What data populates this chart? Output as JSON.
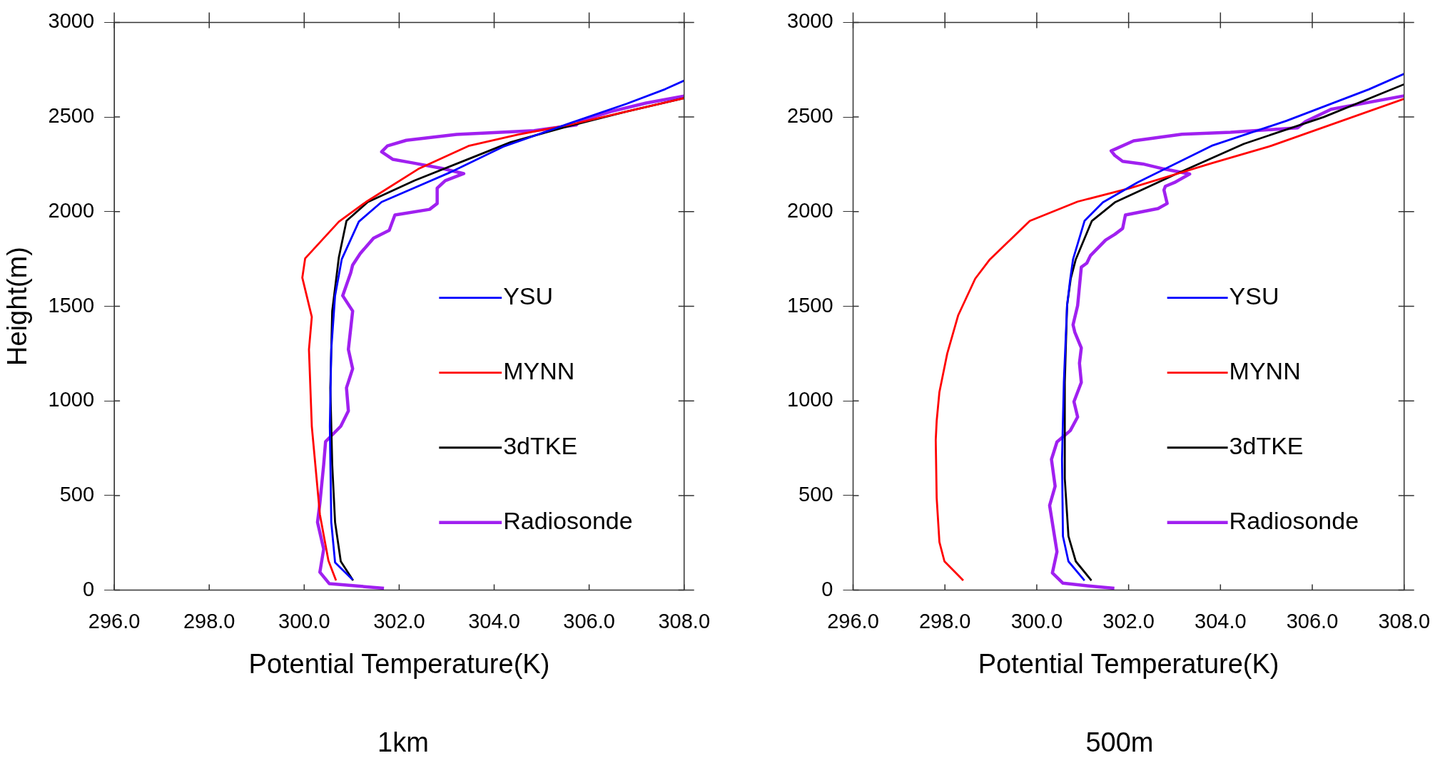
{
  "chart_data": [
    {
      "type": "line",
      "xlabel": "Potential Temperature(K)",
      "ylabel": "Height(m)",
      "annotations": [
        "1km"
      ],
      "legend": "right",
      "xlim": [
        296,
        308
      ],
      "xticks": [
        {
          "value": 296,
          "label": "296.0"
        },
        {
          "value": 298,
          "label": "298.0"
        },
        {
          "value": 300,
          "label": "300.0"
        },
        {
          "value": 302,
          "label": "302.0"
        },
        {
          "value": 304,
          "label": "304.0"
        },
        {
          "value": 306,
          "label": "306.0"
        },
        {
          "value": 308,
          "label": "308.0"
        }
      ],
      "ylim": [
        0,
        3000
      ],
      "yticks": [
        0,
        500,
        1000,
        1500,
        2000,
        2500,
        3000
      ],
      "series": [
        {
          "name": "YSU",
          "color": "#0000ff",
          "x": [
            301.02,
            300.65,
            300.57,
            300.54,
            300.57,
            300.65,
            300.79,
            301.15,
            301.63,
            303.05,
            304.19,
            305.57,
            306.79,
            307.6,
            308.0
          ],
          "values": [
            55,
            146,
            359,
            866,
            1272,
            1556,
            1748,
            1947,
            2051,
            2205,
            2343,
            2465,
            2570,
            2647,
            2692
          ]
        },
        {
          "name": "MYNN",
          "color": "#ff0000",
          "x": [
            300.67,
            300.51,
            300.33,
            300.16,
            300.1,
            300.16,
            299.96,
            300.02,
            300.73,
            301.3,
            302.4,
            303.46,
            304.51,
            305.57,
            306.79,
            308.0
          ],
          "values": [
            51,
            156,
            400,
            866,
            1272,
            1444,
            1651,
            1753,
            1947,
            2051,
            2225,
            2347,
            2408,
            2458,
            2529,
            2600
          ]
        },
        {
          "name": "3dTKE",
          "color": "#000000",
          "x": [
            301.03,
            300.77,
            300.65,
            300.59,
            300.55,
            300.59,
            300.73,
            300.89,
            301.34,
            302.32,
            303.54,
            304.35,
            305.57,
            306.79,
            308.0
          ],
          "values": [
            51,
            152,
            359,
            663,
            1069,
            1475,
            1759,
            1951,
            2051,
            2164,
            2286,
            2367,
            2452,
            2529,
            2600
          ]
        },
        {
          "name": "Radiosonde",
          "color": "#a020f0",
          "x": [
            301.68,
            300.53,
            300.33,
            300.41,
            300.28,
            300.33,
            300.41,
            300.45,
            300.77,
            300.93,
            300.89,
            301.02,
            300.93,
            301.02,
            300.81,
            300.98,
            301.02,
            301.18,
            301.46,
            301.79,
            301.91,
            302.64,
            302.8,
            302.8,
            302.97,
            303.36,
            302.89,
            302.32,
            301.87,
            301.63,
            301.75,
            302.15,
            303.21,
            304.84,
            305.73,
            305.81,
            306.46,
            307.2,
            308.0
          ],
          "values": [
            10,
            34,
            95,
            217,
            359,
            460,
            663,
            785,
            866,
            947,
            1069,
            1170,
            1272,
            1475,
            1556,
            1677,
            1718,
            1779,
            1860,
            1901,
            1982,
            2012,
            2043,
            2124,
            2164,
            2201,
            2229,
            2256,
            2276,
            2316,
            2347,
            2377,
            2408,
            2428,
            2458,
            2479,
            2529,
            2574,
            2611
          ]
        }
      ]
    },
    {
      "type": "line",
      "xlabel": "Potential Temperature(K)",
      "annotations": [
        "500m"
      ],
      "legend": "right",
      "xlim": [
        296,
        308
      ],
      "xticks": [
        {
          "value": 296,
          "label": "296.0"
        },
        {
          "value": 298,
          "label": "298.0"
        },
        {
          "value": 300,
          "label": "300.0"
        },
        {
          "value": 302,
          "label": "302.0"
        },
        {
          "value": 304,
          "label": "304.0"
        },
        {
          "value": 306,
          "label": "306.0"
        },
        {
          "value": 308,
          "label": "308.0"
        }
      ],
      "ylim": [
        0,
        3000
      ],
      "yticks": [
        0,
        500,
        1000,
        1500,
        2000,
        2500,
        3000
      ],
      "series": [
        {
          "name": "YSU",
          "color": "#0000ff",
          "x": [
            301.04,
            300.69,
            300.57,
            300.55,
            300.59,
            300.66,
            300.73,
            300.79,
            301.04,
            301.44,
            302.19,
            303.81,
            305.44,
            307.23,
            308.0
          ],
          "values": [
            51,
            152,
            285,
            691,
            1098,
            1504,
            1646,
            1748,
            1951,
            2049,
            2154,
            2348,
            2480,
            2646,
            2728
          ]
        },
        {
          "name": "MYNN",
          "color": "#ff0000",
          "x": [
            298.4,
            297.99,
            297.88,
            297.82,
            297.8,
            297.82,
            297.88,
            298.05,
            298.29,
            298.66,
            298.98,
            299.85,
            300.89,
            302.03,
            303.81,
            305.11,
            308.0
          ],
          "values": [
            51,
            152,
            254,
            488,
            793,
            894,
            1047,
            1250,
            1453,
            1646,
            1748,
            1951,
            2053,
            2124,
            2256,
            2348,
            2596
          ]
        },
        {
          "name": "3dTKE",
          "color": "#000000",
          "x": [
            301.19,
            300.85,
            300.69,
            300.61,
            300.61,
            300.66,
            300.74,
            300.85,
            301.2,
            301.7,
            303.0,
            304.51,
            306.25,
            308.0
          ],
          "values": [
            51,
            152,
            285,
            590,
            1098,
            1504,
            1646,
            1748,
            1951,
            2049,
            2195,
            2358,
            2500,
            2673
          ]
        },
        {
          "name": "Radiosonde",
          "color": "#a020f0",
          "x": [
            301.69,
            301.22,
            300.57,
            300.34,
            300.44,
            300.36,
            300.28,
            300.4,
            300.32,
            300.44,
            300.73,
            300.89,
            300.81,
            300.97,
            300.93,
            300.97,
            300.83,
            300.79,
            300.89,
            300.93,
            300.97,
            301.09,
            301.17,
            301.5,
            301.7,
            301.87,
            301.93,
            302.64,
            302.84,
            302.77,
            302.8,
            303.0,
            303.33,
            302.76,
            302.31,
            301.87,
            301.7,
            301.62,
            302.11,
            303.16,
            304.22,
            305.68,
            305.85,
            306.41,
            308.0
          ],
          "values": [
            10,
            20,
            37,
            91,
            203,
            325,
            447,
            549,
            691,
            783,
            843,
            915,
            996,
            1098,
            1199,
            1280,
            1362,
            1402,
            1504,
            1606,
            1707,
            1728,
            1768,
            1850,
            1880,
            1911,
            1982,
            2016,
            2043,
            2114,
            2134,
            2154,
            2199,
            2226,
            2252,
            2266,
            2297,
            2321,
            2374,
            2409,
            2419,
            2443,
            2476,
            2541,
            2612
          ]
        }
      ]
    }
  ]
}
